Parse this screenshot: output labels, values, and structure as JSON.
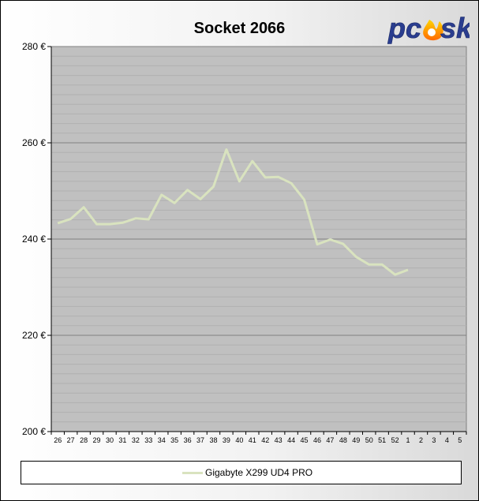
{
  "logo_text": "pcosk",
  "chart_data": {
    "type": "line",
    "title": "Socket 2066",
    "xlabel": "",
    "ylabel": "",
    "categories": [
      "26",
      "27",
      "28",
      "29",
      "30",
      "31",
      "32",
      "33",
      "34",
      "35",
      "36",
      "37",
      "38",
      "39",
      "40",
      "41",
      "42",
      "43",
      "44",
      "45",
      "46",
      "47",
      "48",
      "49",
      "50",
      "51",
      "52",
      "1",
      "2",
      "3",
      "4",
      "5"
    ],
    "ylim": [
      200,
      280
    ],
    "yticks": [
      200,
      220,
      240,
      260,
      280
    ],
    "ytick_suffix": " €",
    "grid": true,
    "legend_position": "bottom",
    "series": [
      {
        "name": "Gigabyte X299 UD4 PRO",
        "color": "#d9e3bf",
        "values": [
          243.3,
          244.2,
          246.6,
          243.1,
          243.1,
          243.4,
          244.3,
          244.1,
          249.2,
          247.5,
          250.2,
          248.3,
          250.9,
          258.6,
          252.0,
          256.2,
          252.8,
          252.9,
          251.6,
          248.2,
          238.9,
          239.9,
          239.0,
          236.3,
          234.7,
          234.7,
          232.6,
          233.6,
          null,
          null,
          null,
          null
        ]
      }
    ]
  }
}
